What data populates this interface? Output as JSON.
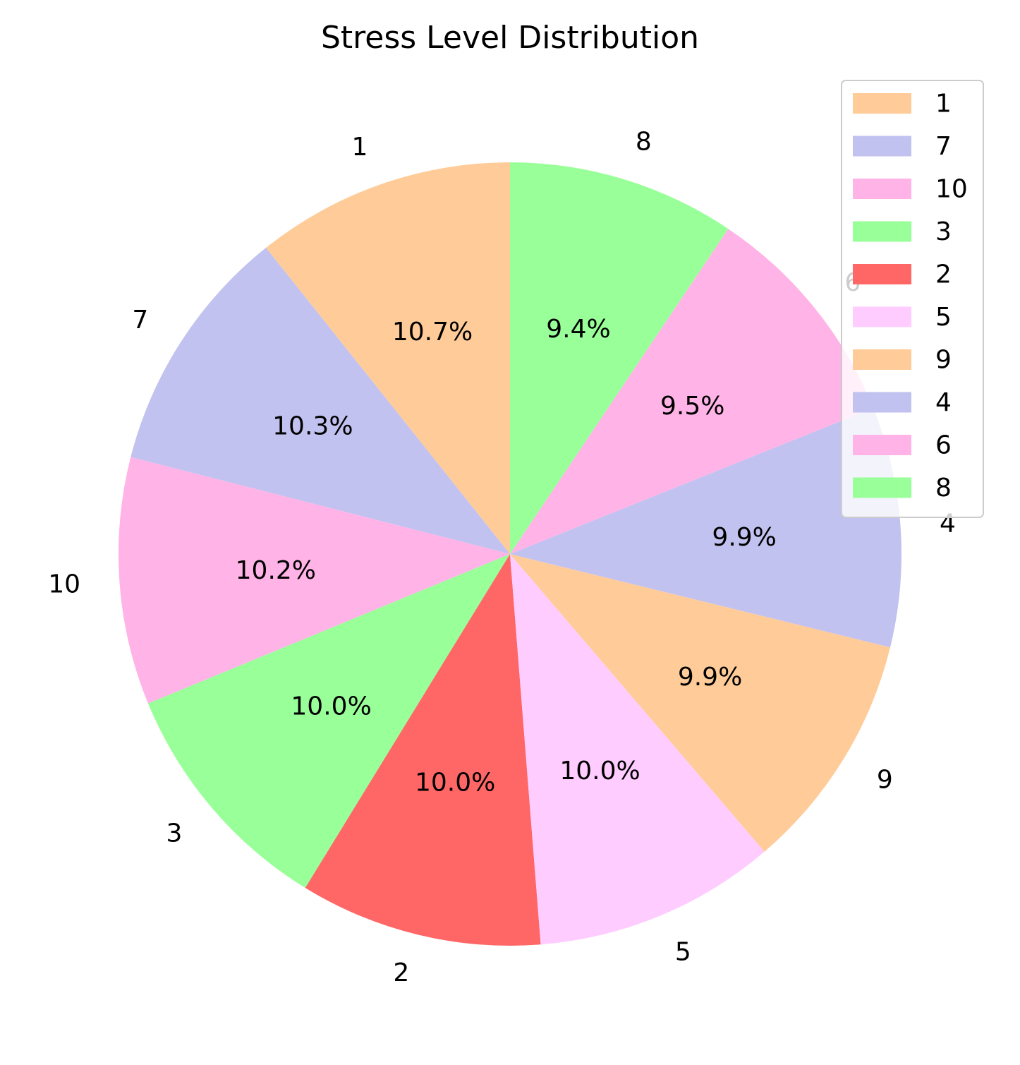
{
  "chart_data": {
    "type": "pie",
    "title": "Stress Level Distribution",
    "categories": [
      "1",
      "7",
      "10",
      "3",
      "2",
      "5",
      "9",
      "4",
      "6",
      "8"
    ],
    "values": [
      10.7,
      10.3,
      10.2,
      10.0,
      10.0,
      10.0,
      9.9,
      9.9,
      9.5,
      9.4
    ],
    "percent_labels": [
      "10.7%",
      "10.3%",
      "10.2%",
      "10.0%",
      "10.0%",
      "10.0%",
      "9.9%",
      "9.9%",
      "9.5%",
      "9.4%"
    ],
    "colors": [
      "#ffcc99",
      "#c2c2f0",
      "#ffb3e6",
      "#99ff99",
      "#ff6666",
      "#ffccff",
      "#ffcc99",
      "#c2c2f0",
      "#ffb3e6",
      "#99ff99"
    ],
    "start_angle_deg": 90,
    "direction": "counterclockwise",
    "legend": {
      "position": "upper-right",
      "entries": [
        "1",
        "7",
        "10",
        "3",
        "2",
        "5",
        "9",
        "4",
        "6",
        "8"
      ]
    }
  }
}
